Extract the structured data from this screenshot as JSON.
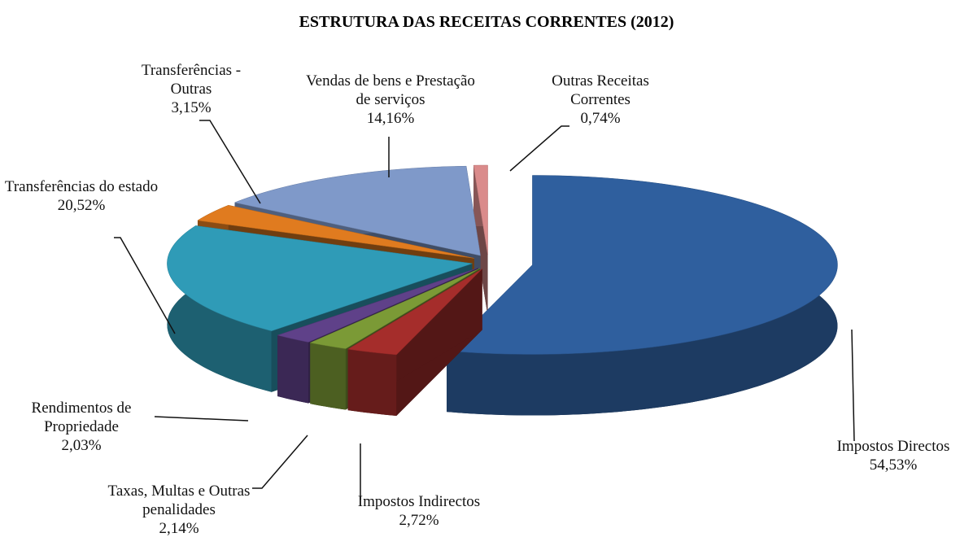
{
  "chart_data": {
    "type": "pie3d",
    "title": "ESTRUTURA DAS RECEITAS CORRENTES (2012)",
    "categories": [
      "Impostos Directos",
      "Impostos Indirectos",
      "Taxas, Multas e Outras penalidades",
      "Rendimentos de Propriedade",
      "Transferências do estado",
      "Transferências - Outras",
      "Vendas de bens e Prestação de serviços",
      "Outras Receitas Correntes"
    ],
    "values": [
      54.53,
      2.72,
      2.14,
      2.03,
      20.52,
      3.15,
      14.16,
      0.74
    ],
    "value_labels": [
      "54,53%",
      "2,72%",
      "2,14%",
      "2,03%",
      "20,52%",
      "3,15%",
      "14,16%",
      "0,74%"
    ],
    "colors": [
      "#2f5f9e",
      "#a52d2b",
      "#7b9a36",
      "#5f4189",
      "#2f9bb7",
      "#e07b1f",
      "#7f99c9",
      "#da8b8b"
    ]
  }
}
